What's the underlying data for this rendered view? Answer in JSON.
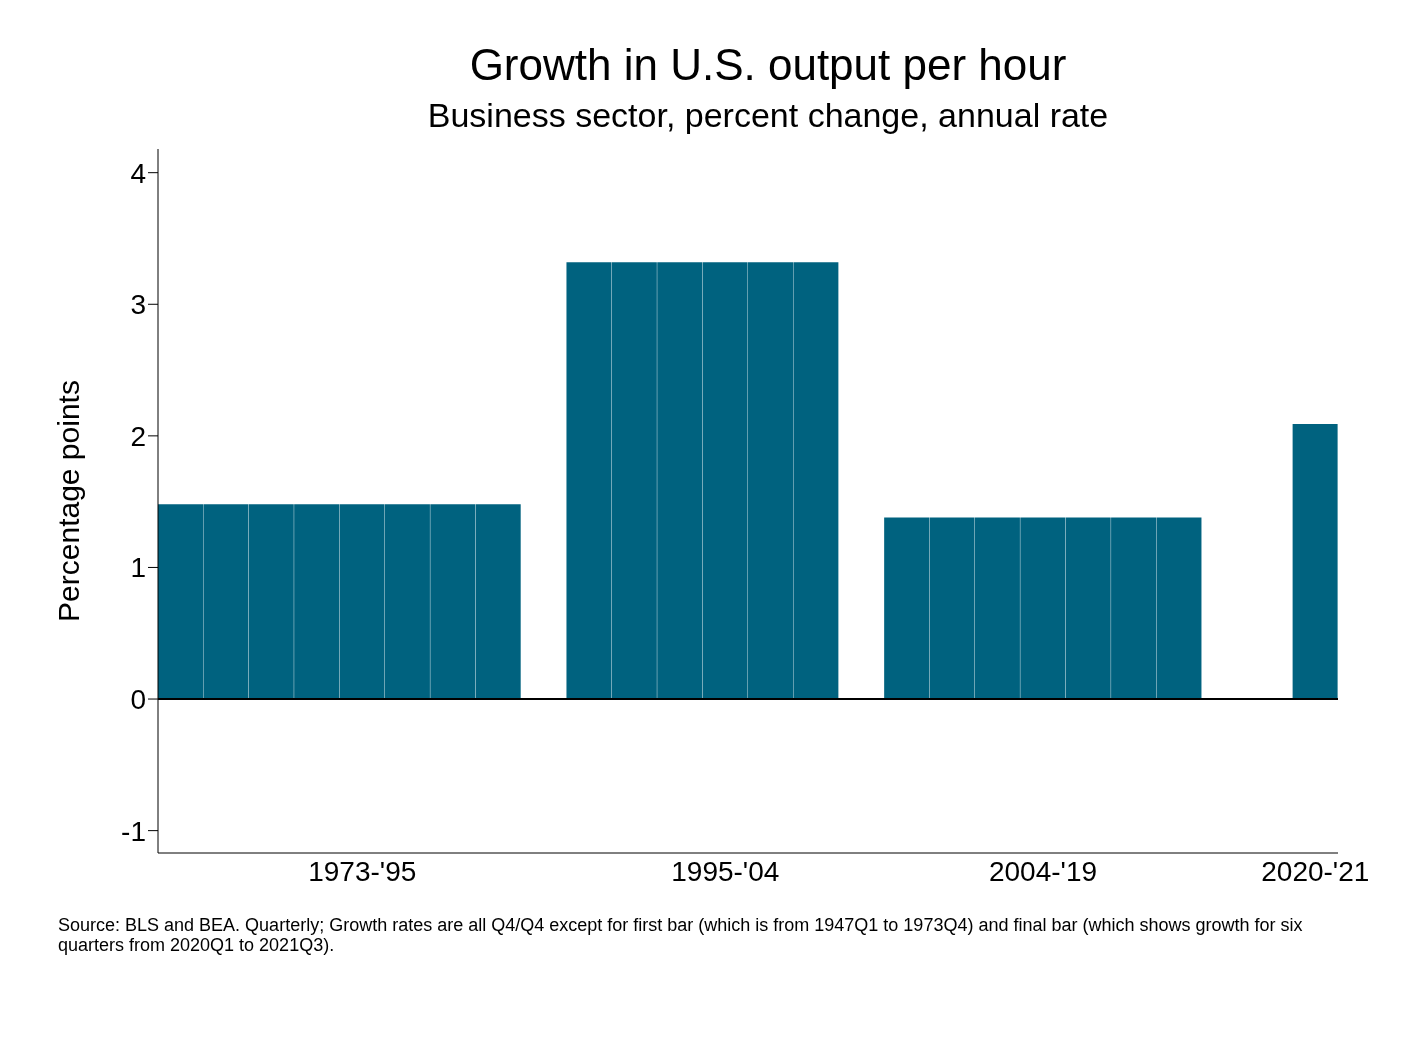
{
  "chart_data": {
    "type": "bar",
    "title": "Growth in U.S. output per hour",
    "subtitle": "Business sector, percent change, annual rate",
    "ylabel": "Percentage points",
    "categories": [
      null,
      null,
      null,
      null,
      "1973-'95",
      null,
      null,
      null,
      null,
      null,
      null,
      null,
      "1995-'04",
      null,
      null,
      null,
      null,
      null,
      null,
      "2004-'19",
      null,
      null,
      null,
      null,
      null,
      "2020-'21"
    ],
    "values": [
      1.48,
      1.48,
      1.48,
      1.48,
      1.48,
      1.48,
      1.48,
      1.48,
      null,
      3.32,
      3.32,
      3.32,
      3.32,
      3.32,
      3.32,
      null,
      1.38,
      1.38,
      1.38,
      1.38,
      1.38,
      1.38,
      1.38,
      null,
      null,
      2.09
    ],
    "color": "#00627f",
    "ylim": [
      -1.17,
      4.18
    ],
    "yticks": [
      -1,
      0,
      1,
      2,
      3,
      4
    ],
    "grid": false,
    "legend": false,
    "ref_lines": [
      {
        "axis": "y",
        "value": 0,
        "color": "#000000"
      }
    ],
    "annotations": [
      "Source: BLS and BEA. Quarterly; Growth rates are all Q4/Q4 except for first bar (which is from 1947Q1 to 1973Q4) and final bar (which shows growth for six quarters from 2020Q1 to 2021Q3)."
    ]
  }
}
